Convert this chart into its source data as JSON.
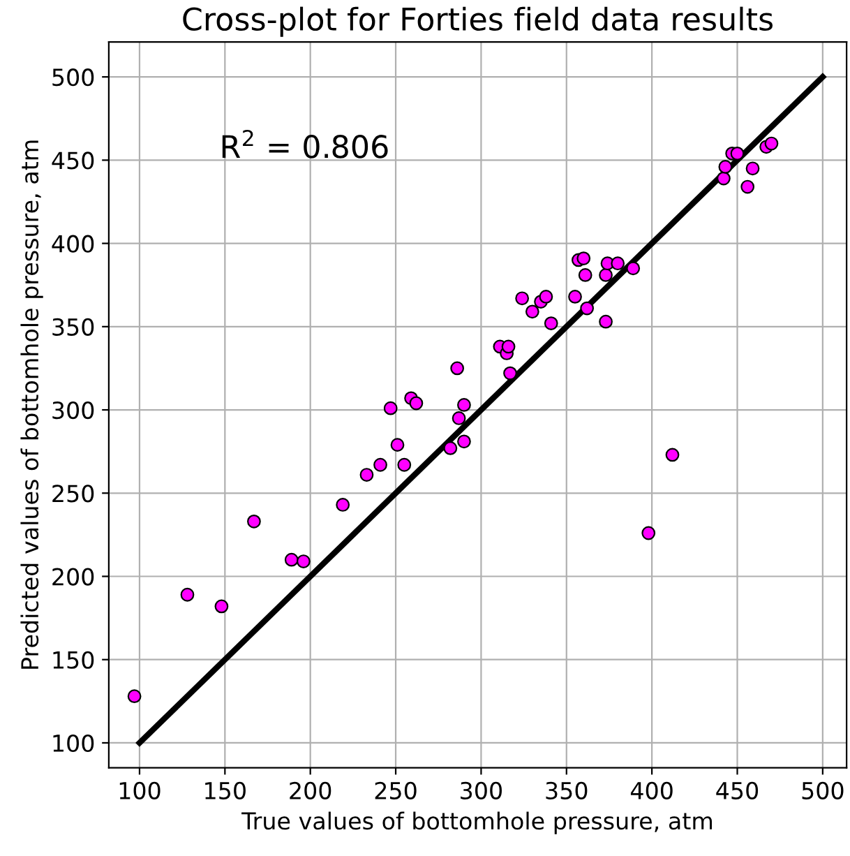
{
  "chart_data": {
    "type": "scatter",
    "title": "Cross-plot for Forties field data results",
    "xlabel": "True values of bottomhole pressure, atm",
    "ylabel": "Predicted values of bottomhole pressure, atm",
    "annotations": [
      "R$^{2}$ = 0.806"
    ],
    "xlim": [
      82,
      514
    ],
    "ylim": [
      85,
      521
    ],
    "xticks": [
      100,
      150,
      200,
      250,
      300,
      350,
      400,
      450,
      500
    ],
    "yticks": [
      100,
      150,
      200,
      250,
      300,
      350,
      400,
      450,
      500
    ],
    "grid": true,
    "series": [
      {
        "color": "#ff00ff",
        "marker": "circle",
        "x": [
          97,
          128,
          148,
          167,
          189,
          196,
          219,
          233,
          241,
          247,
          251,
          255,
          259,
          262,
          282,
          286,
          287,
          290,
          290,
          311,
          315,
          316,
          317,
          324,
          330,
          335,
          338,
          341,
          355,
          357,
          360,
          361,
          362,
          373,
          373,
          374,
          380,
          389,
          398,
          412,
          442,
          443,
          447,
          450,
          456,
          459,
          467,
          470
        ],
        "values": [
          128,
          189,
          182,
          233,
          210,
          209,
          243,
          261,
          267,
          301,
          279,
          267,
          307,
          304,
          277,
          325,
          295,
          303,
          281,
          338,
          334,
          338,
          322,
          367,
          359,
          365,
          368,
          352,
          368,
          390,
          391,
          381,
          361,
          353,
          381,
          388,
          388,
          385,
          226,
          273,
          439,
          446,
          454,
          454,
          434,
          445,
          458,
          460
        ]
      },
      {
        "type": "line",
        "color": "#000000",
        "line_style": "solid",
        "x": [
          100,
          500
        ],
        "values": [
          100,
          500
        ]
      }
    ]
  }
}
